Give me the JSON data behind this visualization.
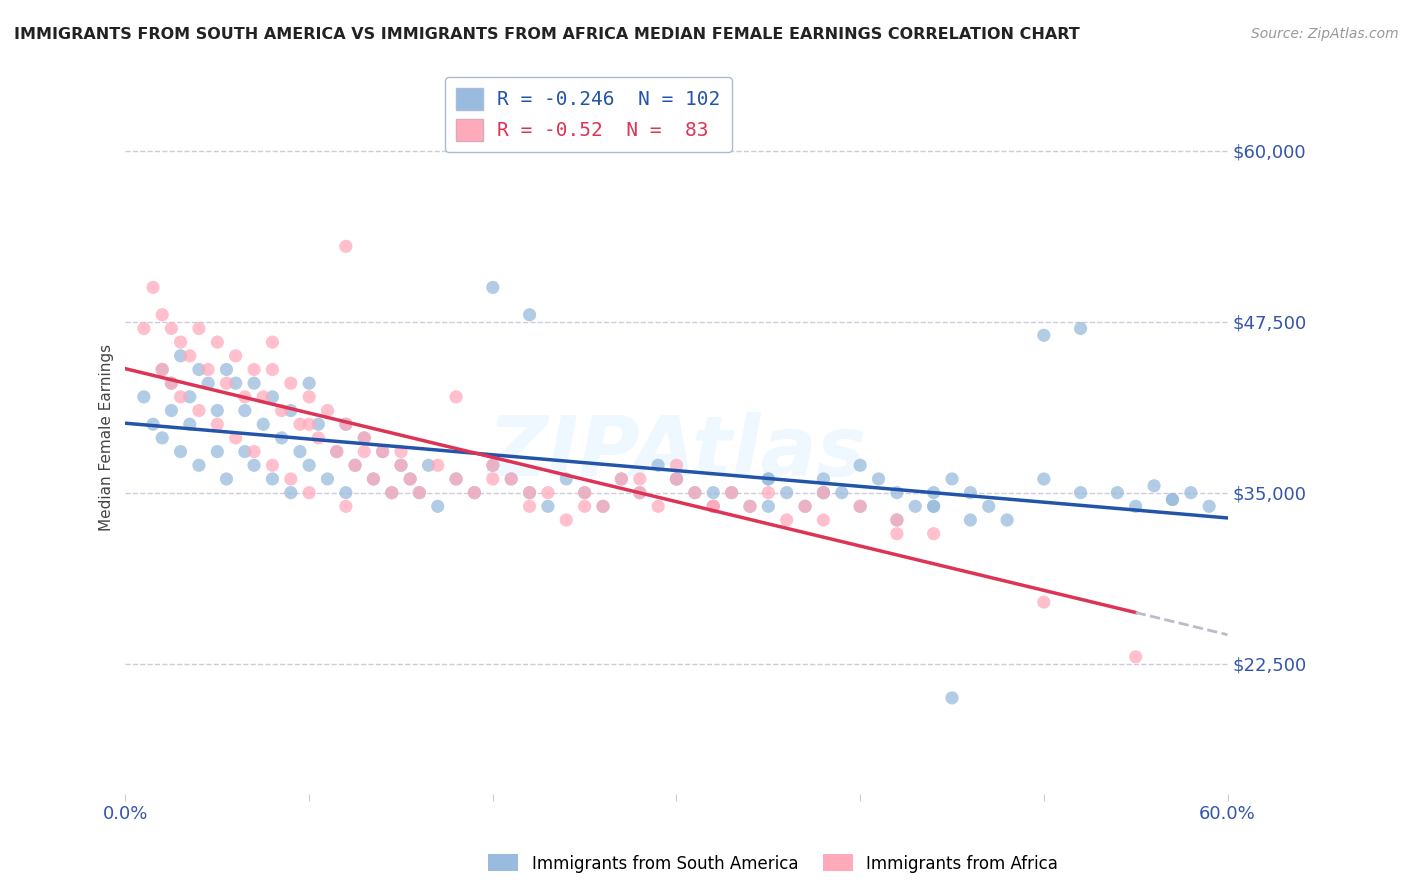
{
  "title": "IMMIGRANTS FROM SOUTH AMERICA VS IMMIGRANTS FROM AFRICA MEDIAN FEMALE EARNINGS CORRELATION CHART",
  "source": "Source: ZipAtlas.com",
  "ylabel": "Median Female Earnings",
  "yticks": [
    22500,
    35000,
    47500,
    60000
  ],
  "ytick_labels": [
    "$22,500",
    "$35,000",
    "$47,500",
    "$60,000"
  ],
  "xmin": 0.0,
  "xmax": 0.6,
  "ymin": 13000,
  "ymax": 65000,
  "blue_R": -0.246,
  "blue_N": 102,
  "pink_R": -0.52,
  "pink_N": 83,
  "blue_color": "#99BBDD",
  "pink_color": "#FFAABB",
  "blue_line_color": "#2255AA",
  "pink_line_color": "#DD3355",
  "pink_dash_color": "#BBBBCC",
  "grid_color": "#CCCCDD",
  "axis_label_color": "#3355AA",
  "watermark": "ZIPAtlas",
  "legend_label_blue": "Immigrants from South America",
  "legend_label_pink": "Immigrants from Africa",
  "blue_scatter_x": [
    0.01,
    0.015,
    0.02,
    0.02,
    0.025,
    0.025,
    0.03,
    0.03,
    0.035,
    0.035,
    0.04,
    0.04,
    0.045,
    0.05,
    0.05,
    0.055,
    0.055,
    0.06,
    0.065,
    0.065,
    0.07,
    0.07,
    0.075,
    0.08,
    0.08,
    0.085,
    0.09,
    0.09,
    0.095,
    0.1,
    0.1,
    0.105,
    0.11,
    0.115,
    0.12,
    0.12,
    0.125,
    0.13,
    0.135,
    0.14,
    0.145,
    0.15,
    0.155,
    0.16,
    0.165,
    0.17,
    0.18,
    0.19,
    0.2,
    0.21,
    0.22,
    0.23,
    0.24,
    0.25,
    0.26,
    0.27,
    0.28,
    0.29,
    0.3,
    0.31,
    0.32,
    0.33,
    0.34,
    0.35,
    0.36,
    0.37,
    0.38,
    0.39,
    0.4,
    0.41,
    0.42,
    0.43,
    0.44,
    0.45,
    0.46,
    0.47,
    0.48,
    0.5,
    0.52,
    0.54,
    0.56,
    0.57,
    0.44,
    0.46,
    0.3,
    0.32,
    0.35,
    0.38,
    0.2,
    0.22,
    0.5,
    0.52,
    0.55,
    0.42,
    0.44,
    0.38,
    0.4,
    0.35,
    0.57,
    0.58,
    0.59,
    0.45
  ],
  "blue_scatter_y": [
    42000,
    40000,
    44000,
    39000,
    43000,
    41000,
    45000,
    38000,
    42000,
    40000,
    44000,
    37000,
    43000,
    41000,
    38000,
    44000,
    36000,
    43000,
    41000,
    38000,
    43000,
    37000,
    40000,
    42000,
    36000,
    39000,
    41000,
    35000,
    38000,
    43000,
    37000,
    40000,
    36000,
    38000,
    40000,
    35000,
    37000,
    39000,
    36000,
    38000,
    35000,
    37000,
    36000,
    35000,
    37000,
    34000,
    36000,
    35000,
    37000,
    36000,
    35000,
    34000,
    36000,
    35000,
    34000,
    36000,
    35000,
    37000,
    36000,
    35000,
    34000,
    35000,
    34000,
    36000,
    35000,
    34000,
    36000,
    35000,
    37000,
    36000,
    35000,
    34000,
    35000,
    36000,
    35000,
    34000,
    33000,
    46500,
    47000,
    35000,
    35500,
    34500,
    34000,
    33000,
    36000,
    35000,
    34000,
    35000,
    50000,
    48000,
    36000,
    35000,
    34000,
    33000,
    34000,
    35000,
    34000,
    36000,
    34500,
    35000,
    34000,
    20000
  ],
  "pink_scatter_x": [
    0.01,
    0.015,
    0.02,
    0.02,
    0.025,
    0.025,
    0.03,
    0.03,
    0.035,
    0.04,
    0.04,
    0.045,
    0.05,
    0.05,
    0.055,
    0.06,
    0.06,
    0.065,
    0.07,
    0.07,
    0.075,
    0.08,
    0.08,
    0.085,
    0.09,
    0.09,
    0.095,
    0.1,
    0.1,
    0.105,
    0.11,
    0.115,
    0.12,
    0.12,
    0.125,
    0.13,
    0.135,
    0.14,
    0.145,
    0.15,
    0.155,
    0.16,
    0.17,
    0.18,
    0.19,
    0.2,
    0.21,
    0.22,
    0.23,
    0.24,
    0.25,
    0.26,
    0.27,
    0.28,
    0.29,
    0.3,
    0.31,
    0.32,
    0.33,
    0.34,
    0.35,
    0.36,
    0.37,
    0.38,
    0.4,
    0.42,
    0.44,
    0.12,
    0.18,
    0.28,
    0.38,
    0.42,
    0.08,
    0.3,
    0.32,
    0.5,
    0.55,
    0.15,
    0.2,
    0.25,
    0.22,
    0.1,
    0.13
  ],
  "pink_scatter_y": [
    47000,
    50000,
    48000,
    44000,
    47000,
    43000,
    46000,
    42000,
    45000,
    47000,
    41000,
    44000,
    46000,
    40000,
    43000,
    45000,
    39000,
    42000,
    44000,
    38000,
    42000,
    44000,
    37000,
    41000,
    43000,
    36000,
    40000,
    42000,
    35000,
    39000,
    41000,
    38000,
    40000,
    34000,
    37000,
    39000,
    36000,
    38000,
    35000,
    37000,
    36000,
    35000,
    37000,
    36000,
    35000,
    37000,
    36000,
    34000,
    35000,
    33000,
    35000,
    34000,
    36000,
    35000,
    34000,
    36000,
    35000,
    34000,
    35000,
    34000,
    35000,
    33000,
    34000,
    33000,
    34000,
    33000,
    32000,
    53000,
    42000,
    36000,
    35000,
    32000,
    46000,
    37000,
    34000,
    27000,
    23000,
    38000,
    36000,
    34000,
    35000,
    40000,
    38000
  ]
}
